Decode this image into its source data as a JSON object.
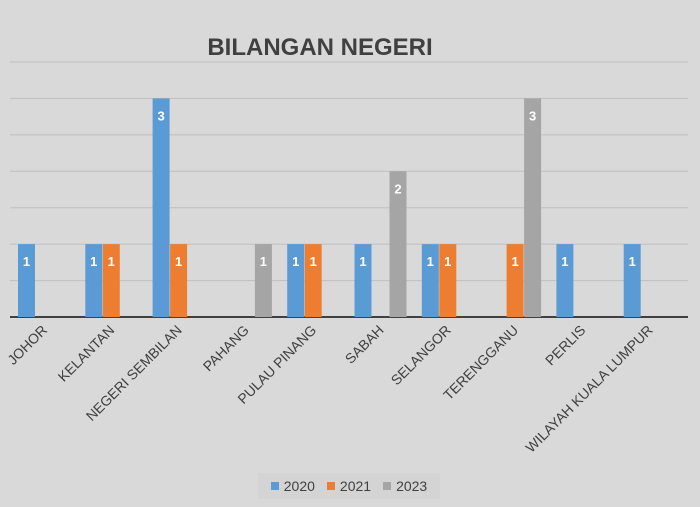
{
  "chart_data": {
    "type": "bar",
    "title": "BILANGAN NEGERI",
    "xlabel": "",
    "ylabel": "",
    "ylim": [
      0,
      3.5
    ],
    "grid_step": 0.5,
    "grid": true,
    "legend_position": "bottom",
    "categories": [
      "JOHOR",
      "KELANTAN",
      "NEGERI SEMBILAN",
      "PAHANG",
      "PULAU PINANG",
      "SABAH",
      "SELANGOR",
      "TERENGGANU",
      "PERLIS",
      "WILAYAH KUALA LUMPUR"
    ],
    "series": [
      {
        "name": "2020",
        "color": "#5b9bd5",
        "values": [
          1,
          1,
          3,
          null,
          1,
          1,
          1,
          null,
          1,
          1
        ]
      },
      {
        "name": "2021",
        "color": "#ed7d31",
        "values": [
          null,
          1,
          1,
          null,
          1,
          null,
          1,
          1,
          null,
          null
        ]
      },
      {
        "name": "2023",
        "color": "#a5a5a5",
        "values": [
          null,
          null,
          null,
          1,
          null,
          2,
          null,
          3,
          null,
          null
        ]
      }
    ]
  }
}
